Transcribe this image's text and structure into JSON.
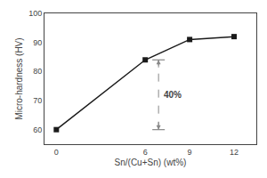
{
  "chart_data": {
    "type": "line",
    "x": [
      0,
      6,
      9,
      12
    ],
    "values": [
      60,
      84,
      91,
      92
    ],
    "color": "#1a1a1a",
    "marker": "square",
    "xlabel": "Sn/(Cu+Sn) (wt%)",
    "ylabel": "Micro-hardness (HV)",
    "xlim": [
      -0.8,
      13.5
    ],
    "ylim": [
      55,
      100
    ],
    "xticks": [
      0,
      6,
      9,
      12
    ],
    "yticks": [
      60,
      70,
      80,
      90,
      100
    ],
    "grid": false,
    "annotations": [
      {
        "text": "40%",
        "x": 6.9,
        "y_from": 60,
        "y_to": 84,
        "color": "#888888"
      }
    ]
  }
}
